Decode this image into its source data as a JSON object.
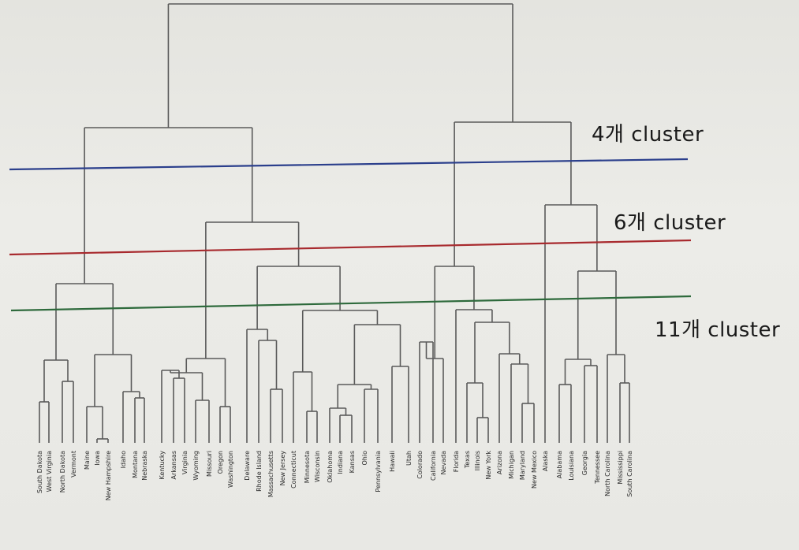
{
  "dendrogram": {
    "leaves": [
      "South Dakota",
      "West Virginia",
      "North Dakota",
      "Vermont",
      "Maine",
      "Iowa",
      "New Hampshire",
      "Idaho",
      "Montana",
      "Nebraska",
      "Kentucky",
      "Arkansas",
      "Virginia",
      "Wyoming",
      "Missouri",
      "Oregon",
      "Washington",
      "Delaware",
      "Rhode Island",
      "Massachusetts",
      "New Jersey",
      "Connecticut",
      "Minnesota",
      "Wisconsin",
      "Oklahoma",
      "Indiana",
      "Kansas",
      "Ohio",
      "Pennsylvania",
      "Hawaii",
      "Utah",
      "Colorado",
      "California",
      "Nevada",
      "Florida",
      "Texas",
      "Illinois",
      "New York",
      "Arizona",
      "Michigan",
      "Maryland",
      "New Mexico",
      "Alaska",
      "Alabama",
      "Louisiana",
      "Georgia",
      "Tennessee",
      "North Carolina",
      "Mississippi",
      "South Carolina"
    ],
    "line_color": "#5a5a5a"
  },
  "cut_lines": [
    {
      "label": "4개 cluster",
      "color": "#2b3f8c"
    },
    {
      "label": "6개 cluster",
      "color": "#a82a2e"
    },
    {
      "label": "11개 cluster",
      "color": "#2e6a3c"
    }
  ]
}
